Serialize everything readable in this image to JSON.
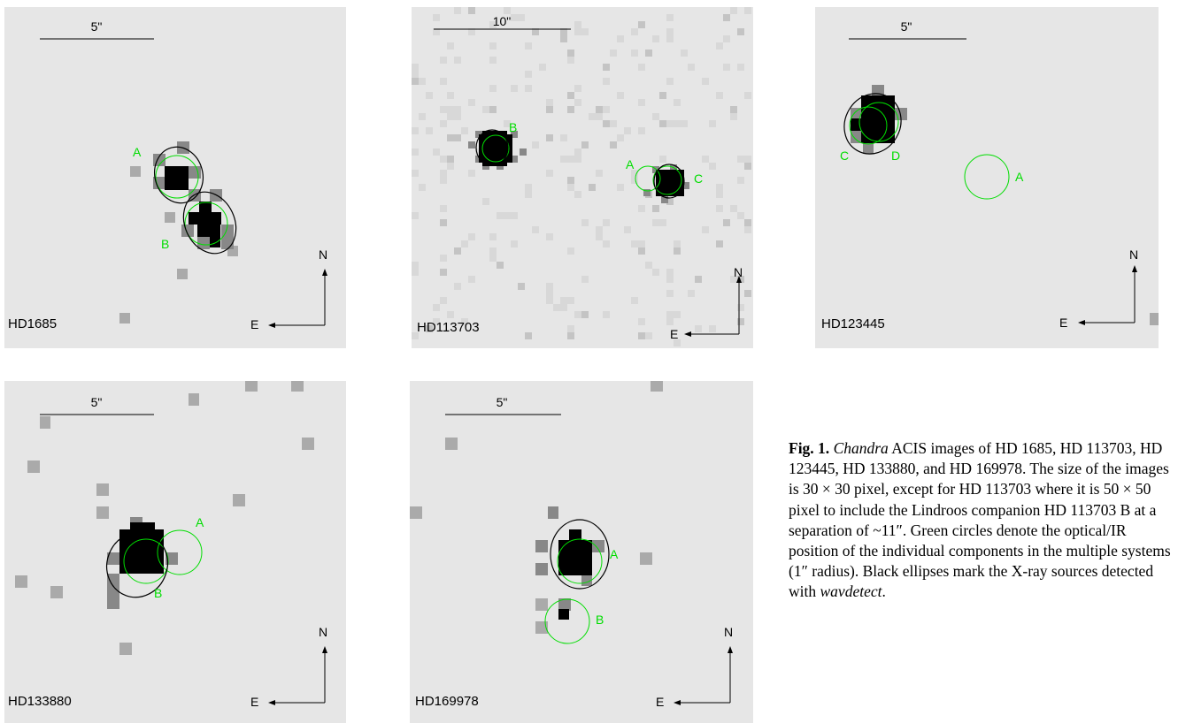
{
  "panels": [
    {
      "name": "HD1685",
      "scale": "5\"",
      "components": [
        "A",
        "B"
      ],
      "north": "N",
      "east": "E"
    },
    {
      "name": "HD113703",
      "scale": "10\"",
      "components": [
        "A",
        "B",
        "C"
      ],
      "north": "N",
      "east": "E"
    },
    {
      "name": "HD123445",
      "scale": "5\"",
      "components": [
        "A",
        "C",
        "D"
      ],
      "north": "N",
      "east": "E"
    },
    {
      "name": "HD133880",
      "scale": "5\"",
      "components": [
        "A",
        "B"
      ],
      "north": "N",
      "east": "E"
    },
    {
      "name": "HD169978",
      "scale": "5\"",
      "components": [
        "A",
        "B"
      ],
      "north": "N",
      "east": "E"
    }
  ],
  "caption": {
    "figno": "Fig. 1.",
    "t1": "Chandra",
    "t2": " ACIS images of HD 1685, HD 113703, HD 123445, HD 133880, and HD 169978. The size of the images is 30 × 30 pixel, except for HD 113703 where it is 50 × 50 pixel to include the Lindroos companion HD 113703 B at a separation of ~11″. Green circles denote the optical/IR position of the individual components in the multiple systems (1″ radius). Black ellipses mark the X-ray sources detected with ",
    "t3": "wavdetect",
    "t4": "."
  }
}
